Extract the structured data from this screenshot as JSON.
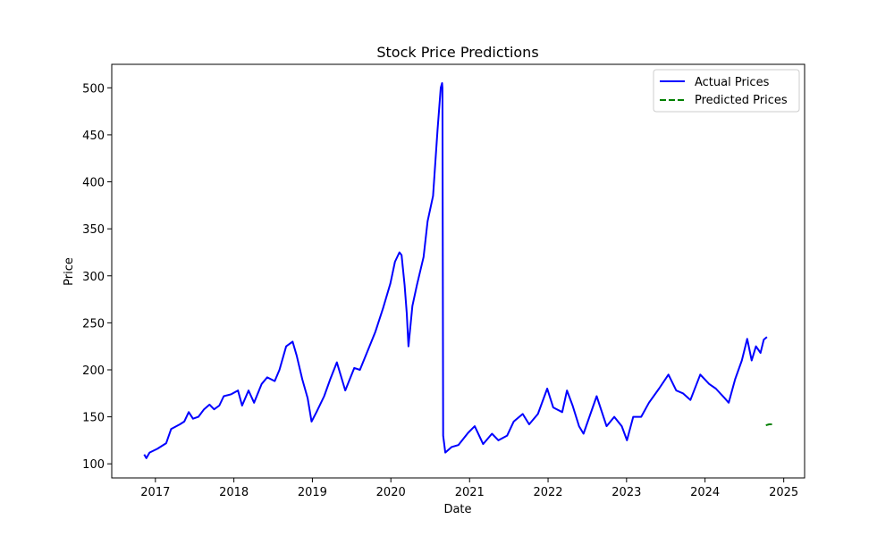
{
  "chart_data": {
    "type": "line",
    "title": "Stock Price Predictions",
    "xlabel": "Date",
    "ylabel": "Price",
    "xlim": [
      "2016-06-12",
      "2025-04-08"
    ],
    "ylim": [
      85,
      525
    ],
    "x_ticks": [
      "2017",
      "2018",
      "2019",
      "2020",
      "2021",
      "2022",
      "2023",
      "2024",
      "2025"
    ],
    "y_ticks": [
      100,
      150,
      200,
      250,
      300,
      350,
      400,
      450,
      500
    ],
    "grid": false,
    "legend": "top-right",
    "series": [
      {
        "name": "Actual Prices",
        "color": "#0000ff",
        "style": "solid",
        "points": [
          [
            "2016-11-10",
            110
          ],
          [
            "2016-11-20",
            106
          ],
          [
            "2016-12-05",
            112
          ],
          [
            "2017-01-10",
            116
          ],
          [
            "2017-02-20",
            122
          ],
          [
            "2017-03-15",
            137
          ],
          [
            "2017-04-25",
            142
          ],
          [
            "2017-05-15",
            145
          ],
          [
            "2017-06-05",
            155
          ],
          [
            "2017-06-25",
            148
          ],
          [
            "2017-07-20",
            150
          ],
          [
            "2017-08-15",
            158
          ],
          [
            "2017-09-10",
            163
          ],
          [
            "2017-10-01",
            158
          ],
          [
            "2017-10-25",
            162
          ],
          [
            "2017-11-15",
            172
          ],
          [
            "2017-12-20",
            174
          ],
          [
            "2018-01-20",
            178
          ],
          [
            "2018-02-08",
            162
          ],
          [
            "2018-03-10",
            178
          ],
          [
            "2018-04-05",
            165
          ],
          [
            "2018-05-10",
            185
          ],
          [
            "2018-06-05",
            192
          ],
          [
            "2018-07-10",
            188
          ],
          [
            "2018-08-01",
            200
          ],
          [
            "2018-09-01",
            225
          ],
          [
            "2018-10-01",
            230
          ],
          [
            "2018-10-20",
            215
          ],
          [
            "2018-11-15",
            190
          ],
          [
            "2018-12-10",
            170
          ],
          [
            "2018-12-28",
            145
          ],
          [
            "2019-01-20",
            155
          ],
          [
            "2019-02-25",
            172
          ],
          [
            "2019-03-25",
            190
          ],
          [
            "2019-04-25",
            208
          ],
          [
            "2019-06-03",
            178
          ],
          [
            "2019-07-15",
            202
          ],
          [
            "2019-08-10",
            200
          ],
          [
            "2019-09-15",
            220
          ],
          [
            "2019-10-20",
            240
          ],
          [
            "2019-11-25",
            265
          ],
          [
            "2019-12-30",
            292
          ],
          [
            "2020-01-20",
            315
          ],
          [
            "2020-02-10",
            325
          ],
          [
            "2020-02-20",
            322
          ],
          [
            "2020-03-05",
            290
          ],
          [
            "2020-03-15",
            260
          ],
          [
            "2020-03-23",
            225
          ],
          [
            "2020-04-10",
            268
          ],
          [
            "2020-05-01",
            290
          ],
          [
            "2020-06-01",
            320
          ],
          [
            "2020-06-20",
            358
          ],
          [
            "2020-07-15",
            385
          ],
          [
            "2020-08-05",
            455
          ],
          [
            "2020-08-20",
            500
          ],
          [
            "2020-08-26",
            505
          ],
          [
            "2020-08-28",
            500
          ],
          [
            "2020-08-31",
            130
          ],
          [
            "2020-09-10",
            112
          ],
          [
            "2020-10-10",
            118
          ],
          [
            "2020-11-10",
            120
          ],
          [
            "2020-12-25",
            133
          ],
          [
            "2021-01-25",
            140
          ],
          [
            "2021-03-05",
            121
          ],
          [
            "2021-04-15",
            132
          ],
          [
            "2021-05-15",
            125
          ],
          [
            "2021-06-25",
            130
          ],
          [
            "2021-07-25",
            145
          ],
          [
            "2021-09-05",
            153
          ],
          [
            "2021-10-05",
            142
          ],
          [
            "2021-11-15",
            153
          ],
          [
            "2021-12-28",
            180
          ],
          [
            "2022-01-25",
            160
          ],
          [
            "2022-03-08",
            155
          ],
          [
            "2022-03-30",
            178
          ],
          [
            "2022-04-25",
            162
          ],
          [
            "2022-05-25",
            140
          ],
          [
            "2022-06-15",
            132
          ],
          [
            "2022-08-15",
            172
          ],
          [
            "2022-09-30",
            140
          ],
          [
            "2022-11-05",
            150
          ],
          [
            "2022-12-10",
            140
          ],
          [
            "2023-01-03",
            125
          ],
          [
            "2023-02-01",
            150
          ],
          [
            "2023-03-10",
            150
          ],
          [
            "2023-04-15",
            165
          ],
          [
            "2023-06-01",
            180
          ],
          [
            "2023-07-15",
            195
          ],
          [
            "2023-08-20",
            178
          ],
          [
            "2023-09-20",
            175
          ],
          [
            "2023-10-25",
            168
          ],
          [
            "2023-12-10",
            195
          ],
          [
            "2024-01-20",
            185
          ],
          [
            "2024-02-20",
            180
          ],
          [
            "2024-04-01",
            170
          ],
          [
            "2024-04-20",
            165
          ],
          [
            "2024-05-20",
            190
          ],
          [
            "2024-06-20",
            210
          ],
          [
            "2024-07-15",
            233
          ],
          [
            "2024-08-05",
            210
          ],
          [
            "2024-08-25",
            225
          ],
          [
            "2024-09-15",
            218
          ],
          [
            "2024-09-30",
            232
          ],
          [
            "2024-10-15",
            235
          ]
        ]
      },
      {
        "name": "Predicted Prices",
        "color": "#008000",
        "style": "dashed",
        "points": [
          [
            "2024-10-10",
            141
          ],
          [
            "2024-10-25",
            142
          ],
          [
            "2024-11-10",
            142
          ]
        ]
      }
    ]
  }
}
